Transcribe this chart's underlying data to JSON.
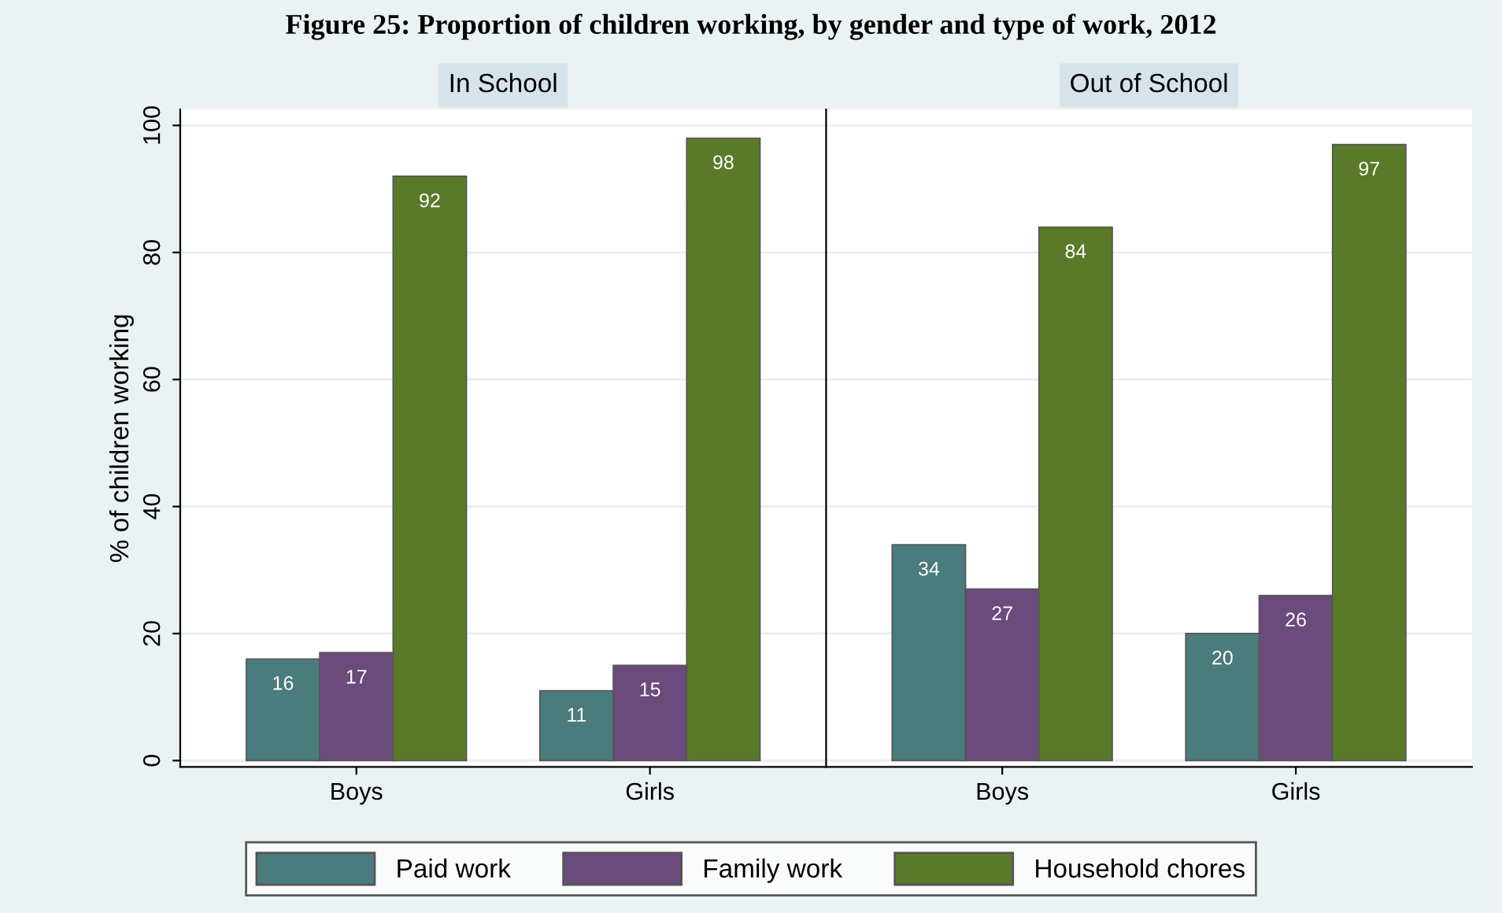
{
  "chart_data": [
    {
      "type": "bar",
      "title": "In School",
      "annotations": [
        "Figure 25: Proportion of children working, by gender and type of work, 2012"
      ],
      "ylabel": "% of children working",
      "categories": [
        "Boys",
        "Girls"
      ],
      "ylim": [
        -1,
        102.5
      ],
      "yticks": [
        0,
        20,
        40,
        60,
        80,
        100
      ],
      "grid": "y",
      "legend": "bottom",
      "data_labels": true,
      "series": [
        {
          "name": "Paid work",
          "color": "#4a7b7d",
          "values": [
            16,
            11
          ]
        },
        {
          "name": "Family work",
          "color": "#6b4a7c",
          "values": [
            17,
            15
          ]
        },
        {
          "name": "Household chores",
          "color": "#5a7a2a",
          "values": [
            92,
            98
          ]
        }
      ]
    },
    {
      "type": "bar",
      "title": "Out of School",
      "categories": [
        "Boys",
        "Girls"
      ],
      "ylim": [
        -1,
        102.5
      ],
      "yticks": [
        0,
        20,
        40,
        60,
        80,
        100
      ],
      "grid": "y",
      "tick_labels": "x",
      "data_labels": true,
      "series": [
        {
          "name": "Paid work",
          "color": "#4a7b7d",
          "values": [
            34,
            20
          ]
        },
        {
          "name": "Family work",
          "color": "#6b4a7c",
          "values": [
            27,
            26
          ]
        },
        {
          "name": "Household chores",
          "color": "#5a7a2a",
          "values": [
            84,
            97
          ]
        }
      ]
    }
  ]
}
